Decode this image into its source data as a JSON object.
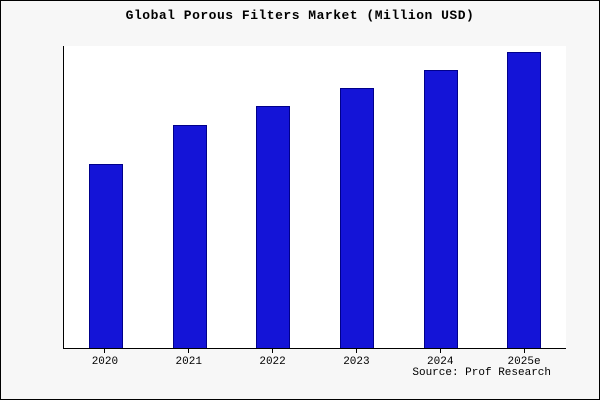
{
  "chart_data": {
    "type": "bar",
    "title": "Global Porous Filters Market (Million USD)",
    "categories": [
      "2020",
      "2021",
      "2022",
      "2023",
      "2024",
      "2025e"
    ],
    "values": [
      61,
      74,
      80,
      86,
      92,
      98
    ],
    "xlabel": "",
    "ylabel": "",
    "ylim": [
      0,
      100
    ],
    "grid": false,
    "legend_position": "none",
    "bar_color": "#1414d7",
    "bar_edge_color": "#00008b"
  },
  "source": "Source: Prof Research"
}
